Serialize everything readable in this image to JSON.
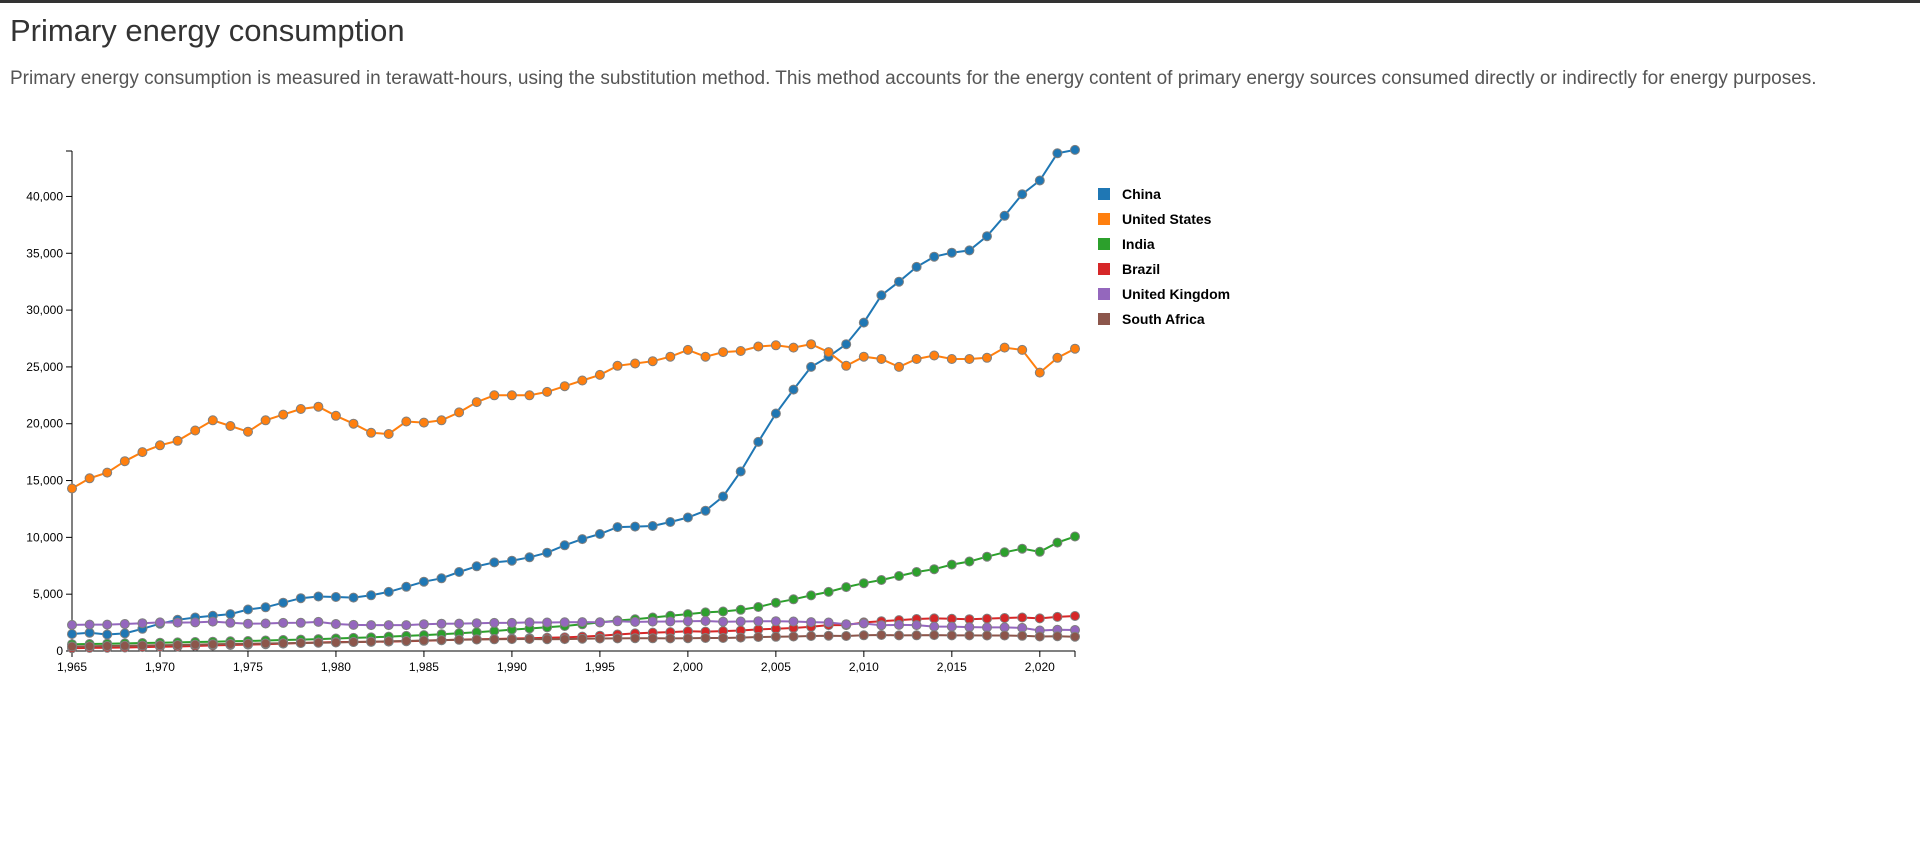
{
  "page": {
    "title": "Primary energy consumption",
    "description": "Primary energy consumption is measured in terawatt-hours, using the substitution method. This method accounts for the energy content of primary energy sources consumed directly or indirectly for energy purposes."
  },
  "chart_data": {
    "type": "line",
    "title": "",
    "xlabel": "",
    "ylabel": "",
    "xlim": [
      1965,
      2022
    ],
    "ylim": [
      0,
      44000
    ],
    "x_ticks": [
      1965,
      1970,
      1975,
      1980,
      1985,
      1990,
      1995,
      2000,
      2005,
      2010,
      2015,
      2020
    ],
    "y_ticks": [
      0,
      5000,
      10000,
      15000,
      20000,
      25000,
      30000,
      35000,
      40000
    ],
    "grid": false,
    "legend_position": "top-right",
    "point_stroke_color": "#7f7f7f",
    "x": [
      1965,
      1966,
      1967,
      1968,
      1969,
      1970,
      1971,
      1972,
      1973,
      1974,
      1975,
      1976,
      1977,
      1978,
      1979,
      1980,
      1981,
      1982,
      1983,
      1984,
      1985,
      1986,
      1987,
      1988,
      1989,
      1990,
      1991,
      1992,
      1993,
      1994,
      1995,
      1996,
      1997,
      1998,
      1999,
      2000,
      2001,
      2002,
      2003,
      2004,
      2005,
      2006,
      2007,
      2008,
      2009,
      2010,
      2011,
      2012,
      2013,
      2014,
      2015,
      2016,
      2017,
      2018,
      2019,
      2020,
      2021,
      2022
    ],
    "series": [
      {
        "name": "China",
        "color": "#1f77b4",
        "values": [
          1500,
          1600,
          1450,
          1550,
          1950,
          2400,
          2750,
          2950,
          3100,
          3250,
          3650,
          3850,
          4250,
          4650,
          4800,
          4750,
          4700,
          4900,
          5200,
          5650,
          6100,
          6400,
          6950,
          7450,
          7800,
          7950,
          8250,
          8650,
          9300,
          9850,
          10300,
          10900,
          10950,
          11000,
          11350,
          11750,
          12350,
          13600,
          15800,
          18400,
          20900,
          23000,
          25000,
          25900,
          27000,
          28900,
          31300,
          32500,
          33800,
          34700,
          35050,
          35250,
          36500,
          38300,
          40200,
          41400,
          43800,
          44100
        ]
      },
      {
        "name": "United States",
        "color": "#ff7f0e",
        "values": [
          14300,
          15200,
          15700,
          16700,
          17500,
          18100,
          18500,
          19400,
          20300,
          19800,
          19300,
          20300,
          20800,
          21300,
          21500,
          20700,
          20000,
          19200,
          19100,
          20200,
          20100,
          20300,
          21000,
          21900,
          22500,
          22500,
          22500,
          22800,
          23300,
          23800,
          24300,
          25100,
          25300,
          25500,
          25900,
          26500,
          25900,
          26300,
          26400,
          26800,
          26900,
          26700,
          27000,
          26300,
          25100,
          25900,
          25700,
          25000,
          25700,
          26000,
          25700,
          25700,
          25800,
          26700,
          26500,
          24500,
          25800,
          26600
        ]
      },
      {
        "name": "India",
        "color": "#2ca02c",
        "values": [
          600,
          620,
          640,
          670,
          700,
          730,
          760,
          790,
          820,
          850,
          880,
          920,
          970,
          1000,
          1050,
          1100,
          1150,
          1200,
          1270,
          1330,
          1400,
          1480,
          1560,
          1650,
          1760,
          1880,
          1980,
          2090,
          2200,
          2350,
          2520,
          2680,
          2790,
          2950,
          3100,
          3250,
          3400,
          3480,
          3630,
          3870,
          4250,
          4550,
          4890,
          5200,
          5620,
          5970,
          6250,
          6600,
          6950,
          7200,
          7600,
          7880,
          8300,
          8690,
          9000,
          8730,
          9540,
          10080
        ]
      },
      {
        "name": "Brazil",
        "color": "#d62728",
        "values": [
          250,
          270,
          290,
          310,
          340,
          370,
          400,
          440,
          490,
          530,
          560,
          600,
          650,
          700,
          750,
          790,
          790,
          810,
          830,
          860,
          900,
          950,
          1000,
          1030,
          1060,
          1100,
          1130,
          1160,
          1200,
          1270,
          1350,
          1450,
          1550,
          1620,
          1660,
          1730,
          1710,
          1750,
          1800,
          1900,
          1950,
          2020,
          2130,
          2280,
          2280,
          2520,
          2620,
          2720,
          2820,
          2870,
          2830,
          2800,
          2850,
          2900,
          2950,
          2870,
          3000,
          3080
        ]
      },
      {
        "name": "United Kingdom",
        "color": "#9467bd",
        "values": [
          2300,
          2320,
          2320,
          2380,
          2450,
          2520,
          2500,
          2520,
          2590,
          2480,
          2400,
          2420,
          2470,
          2480,
          2560,
          2380,
          2300,
          2280,
          2280,
          2280,
          2360,
          2400,
          2410,
          2450,
          2470,
          2470,
          2520,
          2510,
          2530,
          2540,
          2530,
          2610,
          2560,
          2590,
          2600,
          2620,
          2640,
          2580,
          2600,
          2620,
          2620,
          2600,
          2540,
          2510,
          2360,
          2420,
          2270,
          2300,
          2280,
          2150,
          2150,
          2100,
          2080,
          2080,
          2030,
          1800,
          1870,
          1850
        ]
      },
      {
        "name": "South Africa",
        "color": "#8c564b",
        "values": [
          400,
          420,
          440,
          460,
          480,
          500,
          530,
          560,
          590,
          620,
          640,
          660,
          680,
          700,
          730,
          750,
          790,
          820,
          850,
          880,
          920,
          960,
          990,
          1010,
          1030,
          1050,
          1060,
          1040,
          1050,
          1080,
          1100,
          1110,
          1130,
          1120,
          1110,
          1130,
          1140,
          1140,
          1180,
          1230,
          1250,
          1280,
          1320,
          1350,
          1320,
          1380,
          1410,
          1370,
          1380,
          1400,
          1370,
          1370,
          1360,
          1360,
          1340,
          1280,
          1300,
          1260
        ]
      }
    ]
  }
}
